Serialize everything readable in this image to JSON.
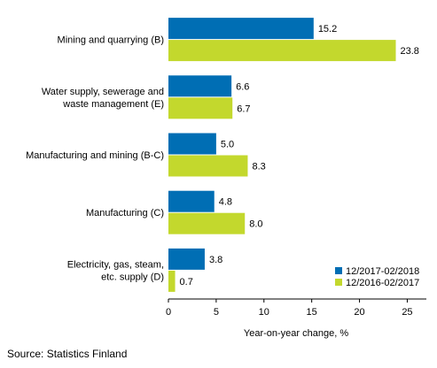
{
  "chart_data": {
    "type": "bar",
    "orientation": "horizontal",
    "categories": [
      [
        "Mining and quarrying (B)"
      ],
      [
        "Water supply, sewerage and",
        "waste management (E)"
      ],
      [
        "Manufacturing and mining (B-C)"
      ],
      [
        "Manufacturing (C)"
      ],
      [
        "Electricity, gas, steam,",
        "etc. supply (D)"
      ]
    ],
    "series": [
      {
        "name": "12/2017-02/2018",
        "values": [
          15.2,
          6.6,
          5.0,
          4.8,
          3.8
        ],
        "value_labels": [
          "15.2",
          "6.6",
          "5.0",
          "4.8",
          "3.8"
        ],
        "color": "#006eb4"
      },
      {
        "name": "12/2016-02/2017",
        "values": [
          23.8,
          6.7,
          8.3,
          8.0,
          0.7
        ],
        "value_labels": [
          "23.8",
          "6.7",
          "8.3",
          "8.0",
          "0.7"
        ],
        "color": "#c3d82d"
      }
    ],
    "xlabel": "Year-on-year change, %",
    "xlim": [
      0,
      27
    ],
    "xticks": [
      0,
      5,
      10,
      15,
      20,
      25
    ],
    "grid": false,
    "legend_position": "bottom-right"
  },
  "source": "Source: Statistics Finland"
}
